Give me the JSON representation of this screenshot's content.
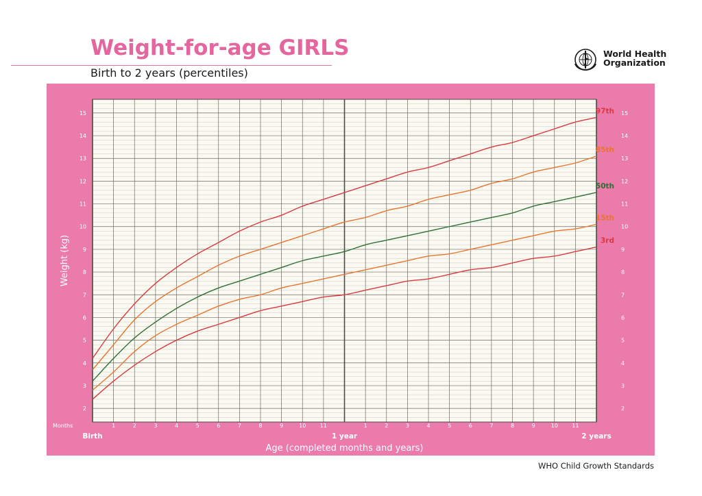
{
  "header": {
    "title": "Weight-for-age GIRLS",
    "subtitle": "Birth to 2 years (percentiles)",
    "org_line1": "World Health",
    "org_line2": "Organization"
  },
  "footer": {
    "text": "WHO Child Growth Standards"
  },
  "colors": {
    "frame": "#ea7bab",
    "plot_bg": "#fbfaf2",
    "grid_major": "#6a6a5e",
    "grid_minor": "#c9c9bc",
    "red": "#d9393f",
    "orange": "#e8742e",
    "green": "#2f6e35",
    "title_pink": "#e5659e"
  },
  "chart_data": {
    "type": "line",
    "xlabel": "Age (completed months and years)",
    "ylabel": "Weight (kg)",
    "x_unit": "months",
    "xlim": [
      0,
      24
    ],
    "ylim": [
      1.4,
      15.6
    ],
    "y_ticks": [
      2,
      3,
      4,
      5,
      6,
      7,
      8,
      9,
      10,
      11,
      12,
      13,
      14,
      15
    ],
    "months_label": "Months",
    "x_tick_labels": [
      {
        "x": 0,
        "label": "Birth",
        "bold": true
      },
      {
        "x": 1,
        "label": "1"
      },
      {
        "x": 2,
        "label": "2"
      },
      {
        "x": 3,
        "label": "3"
      },
      {
        "x": 4,
        "label": "4"
      },
      {
        "x": 5,
        "label": "5"
      },
      {
        "x": 6,
        "label": "6"
      },
      {
        "x": 7,
        "label": "7"
      },
      {
        "x": 8,
        "label": "8"
      },
      {
        "x": 9,
        "label": "9"
      },
      {
        "x": 10,
        "label": "10"
      },
      {
        "x": 11,
        "label": "11"
      },
      {
        "x": 12,
        "label": "1 year",
        "bold": true
      },
      {
        "x": 13,
        "label": "1"
      },
      {
        "x": 14,
        "label": "2"
      },
      {
        "x": 15,
        "label": "3"
      },
      {
        "x": 16,
        "label": "4"
      },
      {
        "x": 17,
        "label": "5"
      },
      {
        "x": 18,
        "label": "6"
      },
      {
        "x": 19,
        "label": "7"
      },
      {
        "x": 20,
        "label": "8"
      },
      {
        "x": 21,
        "label": "9"
      },
      {
        "x": 22,
        "label": "10"
      },
      {
        "x": 23,
        "label": "11"
      },
      {
        "x": 24,
        "label": "2 years",
        "bold": true
      }
    ],
    "x": [
      0,
      1,
      2,
      3,
      4,
      5,
      6,
      7,
      8,
      9,
      10,
      11,
      12,
      13,
      14,
      15,
      16,
      17,
      18,
      19,
      20,
      21,
      22,
      23,
      24
    ],
    "series": [
      {
        "name": "97th",
        "color": "red",
        "values": [
          4.2,
          5.5,
          6.6,
          7.5,
          8.2,
          8.8,
          9.3,
          9.8,
          10.2,
          10.5,
          10.9,
          11.2,
          11.5,
          11.8,
          12.1,
          12.4,
          12.6,
          12.9,
          13.2,
          13.5,
          13.7,
          14.0,
          14.3,
          14.6,
          14.8
        ]
      },
      {
        "name": "85th",
        "color": "orange",
        "values": [
          3.7,
          4.8,
          5.9,
          6.7,
          7.3,
          7.8,
          8.3,
          8.7,
          9.0,
          9.3,
          9.6,
          9.9,
          10.2,
          10.4,
          10.7,
          10.9,
          11.2,
          11.4,
          11.6,
          11.9,
          12.1,
          12.4,
          12.6,
          12.8,
          13.1
        ]
      },
      {
        "name": "50th",
        "color": "green",
        "values": [
          3.2,
          4.2,
          5.1,
          5.8,
          6.4,
          6.9,
          7.3,
          7.6,
          7.9,
          8.2,
          8.5,
          8.7,
          8.9,
          9.2,
          9.4,
          9.6,
          9.8,
          10.0,
          10.2,
          10.4,
          10.6,
          10.9,
          11.1,
          11.3,
          11.5
        ]
      },
      {
        "name": "15th",
        "color": "orange",
        "values": [
          2.8,
          3.6,
          4.5,
          5.2,
          5.7,
          6.1,
          6.5,
          6.8,
          7.0,
          7.3,
          7.5,
          7.7,
          7.9,
          8.1,
          8.3,
          8.5,
          8.7,
          8.8,
          9.0,
          9.2,
          9.4,
          9.6,
          9.8,
          9.9,
          10.1
        ]
      },
      {
        "name": "3rd",
        "color": "red",
        "values": [
          2.4,
          3.2,
          3.9,
          4.5,
          5.0,
          5.4,
          5.7,
          6.0,
          6.3,
          6.5,
          6.7,
          6.9,
          7.0,
          7.2,
          7.4,
          7.6,
          7.7,
          7.9,
          8.1,
          8.2,
          8.4,
          8.6,
          8.7,
          8.9,
          9.1
        ]
      }
    ]
  }
}
